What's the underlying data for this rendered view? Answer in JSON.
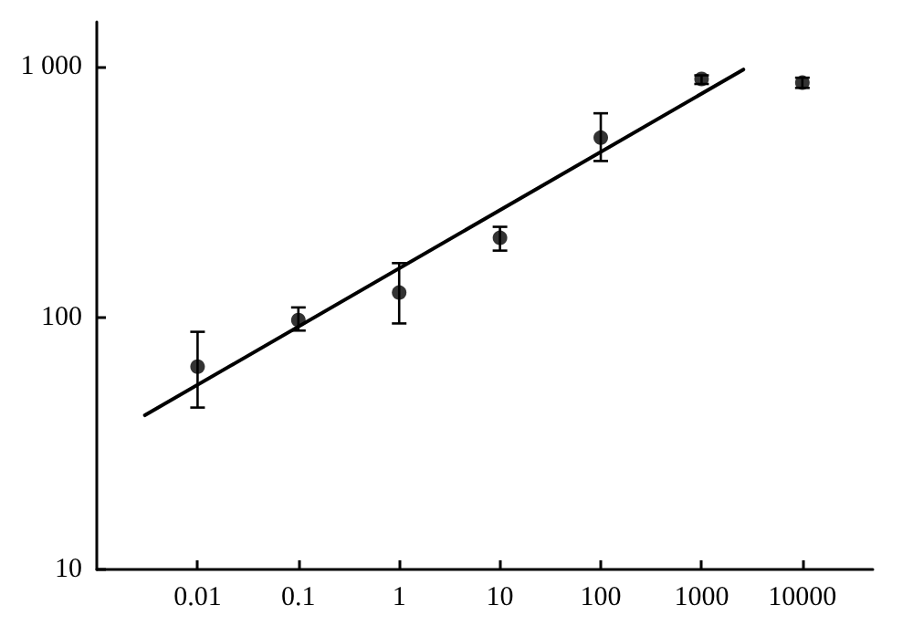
{
  "chart_data": {
    "type": "scatter",
    "log": "xy",
    "grid": false,
    "xlim": [
      0.001,
      50000
    ],
    "xticks": [
      0.01,
      0.1,
      1,
      10,
      100,
      1000,
      10000
    ],
    "ylim": [
      10,
      1500
    ],
    "yticks": [
      10,
      100,
      {
        "value": 1000,
        "label": "1 000"
      }
    ],
    "series": [
      {
        "color": "#000000",
        "marker": "circle",
        "x": [
          0.01,
          0.1,
          1,
          10,
          100,
          1000,
          10000
        ],
        "values": [
          64,
          98,
          126,
          208,
          520,
          890,
          860
        ],
        "errors": [
          [
            44,
            88
          ],
          [
            89,
            110
          ],
          [
            95,
            165
          ],
          [
            185,
            230
          ],
          [
            420,
            650
          ],
          [
            850,
            920
          ],
          [
            820,
            900
          ]
        ]
      },
      {
        "type": "line",
        "color": "#000000",
        "marker": "none",
        "line_style": "solid",
        "x": [
          0.003,
          2600
        ],
        "values": [
          41,
          970
        ]
      }
    ]
  }
}
